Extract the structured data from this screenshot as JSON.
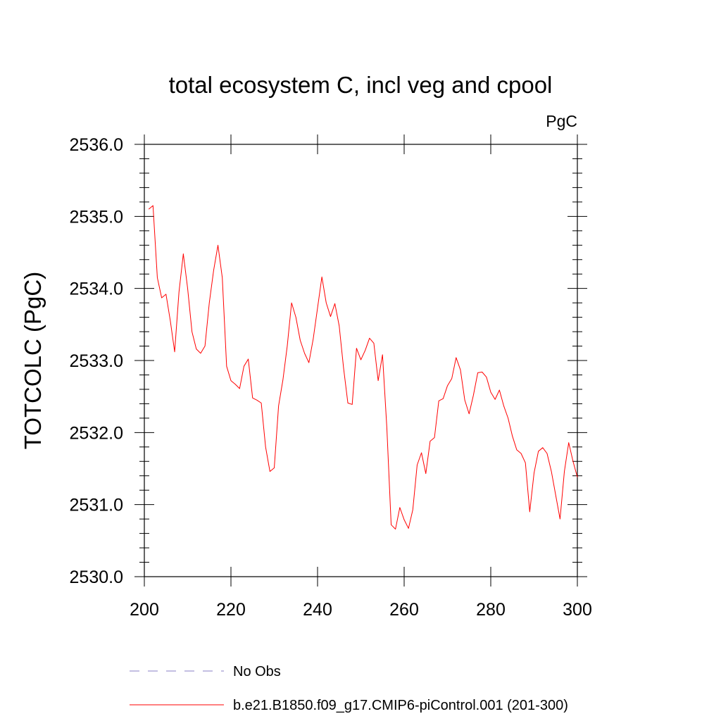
{
  "chart_data": {
    "type": "line",
    "title": "total ecosystem C, incl veg and cpool",
    "units_label": "PgC",
    "ylabel": "TOTCOLC  (PgC)",
    "xlabel": "",
    "xlim": [
      200,
      300
    ],
    "ylim": [
      2530.0,
      2536.0
    ],
    "xticks": [
      200,
      220,
      240,
      260,
      280,
      300
    ],
    "xtick_labels": [
      "200",
      "220",
      "240",
      "260",
      "280",
      "300"
    ],
    "yticks": [
      2530.0,
      2531.0,
      2532.0,
      2533.0,
      2534.0,
      2535.0,
      2536.0
    ],
    "ytick_labels": [
      "2530.0",
      "2531.0",
      "2532.0",
      "2533.0",
      "2534.0",
      "2535.0",
      "2536.0"
    ],
    "x": [
      201,
      202,
      203,
      204,
      205,
      206,
      207,
      208,
      209,
      210,
      211,
      212,
      213,
      214,
      215,
      216,
      217,
      218,
      219,
      220,
      221,
      222,
      223,
      224,
      225,
      226,
      227,
      228,
      229,
      230,
      231,
      232,
      233,
      234,
      235,
      236,
      237,
      238,
      239,
      240,
      241,
      242,
      243,
      244,
      245,
      246,
      247,
      248,
      249,
      250,
      251,
      252,
      253,
      254,
      255,
      256,
      257,
      258,
      259,
      260,
      261,
      262,
      263,
      264,
      265,
      266,
      267,
      268,
      269,
      270,
      271,
      272,
      273,
      274,
      275,
      276,
      277,
      278,
      279,
      280,
      281,
      282,
      283,
      284,
      285,
      286,
      287,
      288,
      289,
      290,
      291,
      292,
      293,
      294,
      295,
      296,
      297,
      298,
      299,
      300
    ],
    "series": [
      {
        "name": "b.e21.B1850.f09_g17.CMIP6-piControl.001 (201-300)",
        "color": "#ff0000",
        "style": "solid",
        "values": [
          2535.1,
          2535.15,
          2534.15,
          2533.87,
          2533.92,
          2533.55,
          2533.12,
          2533.95,
          2534.48,
          2534.0,
          2533.4,
          2533.16,
          2533.1,
          2533.2,
          2533.8,
          2534.25,
          2534.6,
          2534.15,
          2532.92,
          2532.72,
          2532.67,
          2532.61,
          2532.92,
          2533.02,
          2532.48,
          2532.45,
          2532.41,
          2531.8,
          2531.46,
          2531.51,
          2532.37,
          2532.73,
          2533.2,
          2533.8,
          2533.6,
          2533.28,
          2533.1,
          2532.97,
          2533.3,
          2533.73,
          2534.16,
          2533.8,
          2533.61,
          2533.79,
          2533.48,
          2532.9,
          2532.41,
          2532.39,
          2533.17,
          2533.01,
          2533.14,
          2533.31,
          2533.24,
          2532.72,
          2533.08,
          2532.07,
          2530.72,
          2530.66,
          2530.96,
          2530.79,
          2530.67,
          2530.93,
          2531.55,
          2531.72,
          2531.43,
          2531.88,
          2531.93,
          2532.44,
          2532.47,
          2532.65,
          2532.75,
          2533.04,
          2532.87,
          2532.45,
          2532.26,
          2532.52,
          2532.83,
          2532.84,
          2532.77,
          2532.56,
          2532.46,
          2532.59,
          2532.37,
          2532.2,
          2531.95,
          2531.76,
          2531.71,
          2531.58,
          2530.9,
          2531.44,
          2531.74,
          2531.79,
          2531.71,
          2531.46,
          2531.13,
          2530.8,
          2531.46,
          2531.86,
          2531.6,
          2531.38
        ]
      }
    ],
    "legend": [
      {
        "label": "No Obs",
        "color": "#8a7fc4",
        "style": "dashed"
      },
      {
        "label": "b.e21.B1850.f09_g17.CMIP6-piControl.001 (201-300)",
        "color": "#ff0000",
        "style": "solid"
      }
    ],
    "legend_position": "bottom",
    "grid": false
  }
}
